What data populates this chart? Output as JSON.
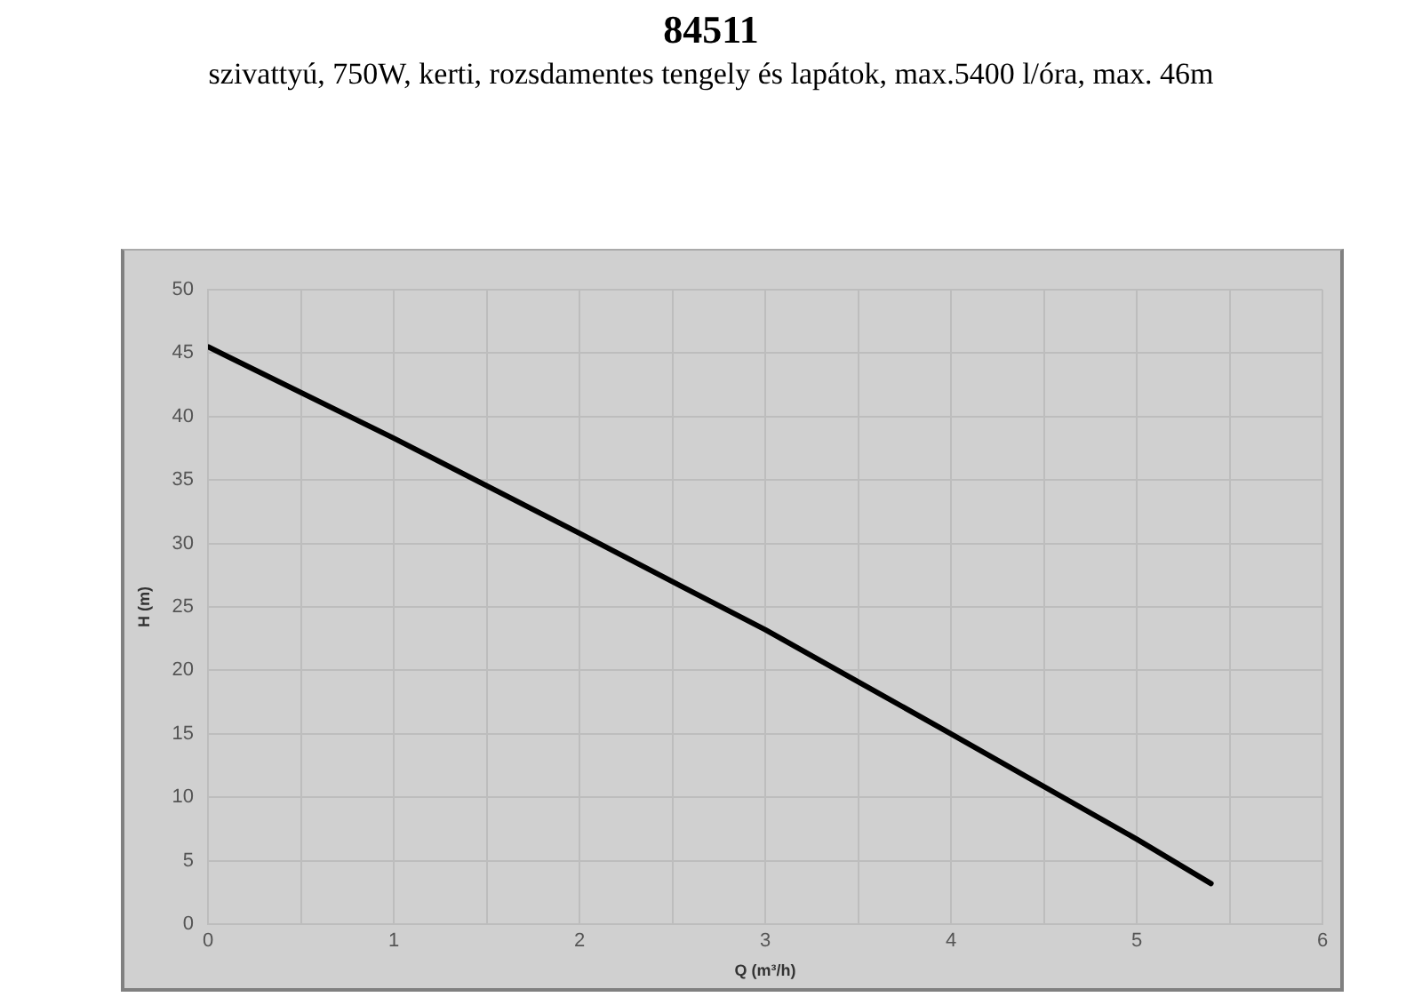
{
  "chart_data": {
    "type": "line",
    "title": "84511",
    "subtitle": "szivattyú, 750W, kerti, rozsdamentes tengely és lapátok, max.5400 l/óra, max. 46m",
    "xlabel": "Q (m³/h)",
    "ylabel": "H (m)",
    "series": [
      {
        "color": "#000000",
        "x": [
          0,
          1,
          2,
          3,
          4,
          5,
          5.4
        ],
        "values": [
          45.5,
          38.3,
          30.8,
          23.2,
          15.0,
          6.7,
          3.2
        ]
      }
    ],
    "xlim": [
      0,
      6
    ],
    "xticks": [
      0,
      {
        "value": 0.5,
        "label": null
      },
      1,
      {
        "value": 1.5,
        "label": null
      },
      2,
      {
        "value": 2.5,
        "label": null
      },
      3,
      {
        "value": 3.5,
        "label": null
      },
      4,
      {
        "value": 4.5,
        "label": null
      },
      5,
      {
        "value": 5.5,
        "label": null
      },
      6
    ],
    "ylim": [
      0,
      50
    ],
    "yticks": [
      0,
      5,
      10,
      15,
      20,
      25,
      30,
      35,
      40,
      45,
      50
    ],
    "grid": true,
    "legend": false,
    "marker": "none",
    "line_style": "solid"
  }
}
